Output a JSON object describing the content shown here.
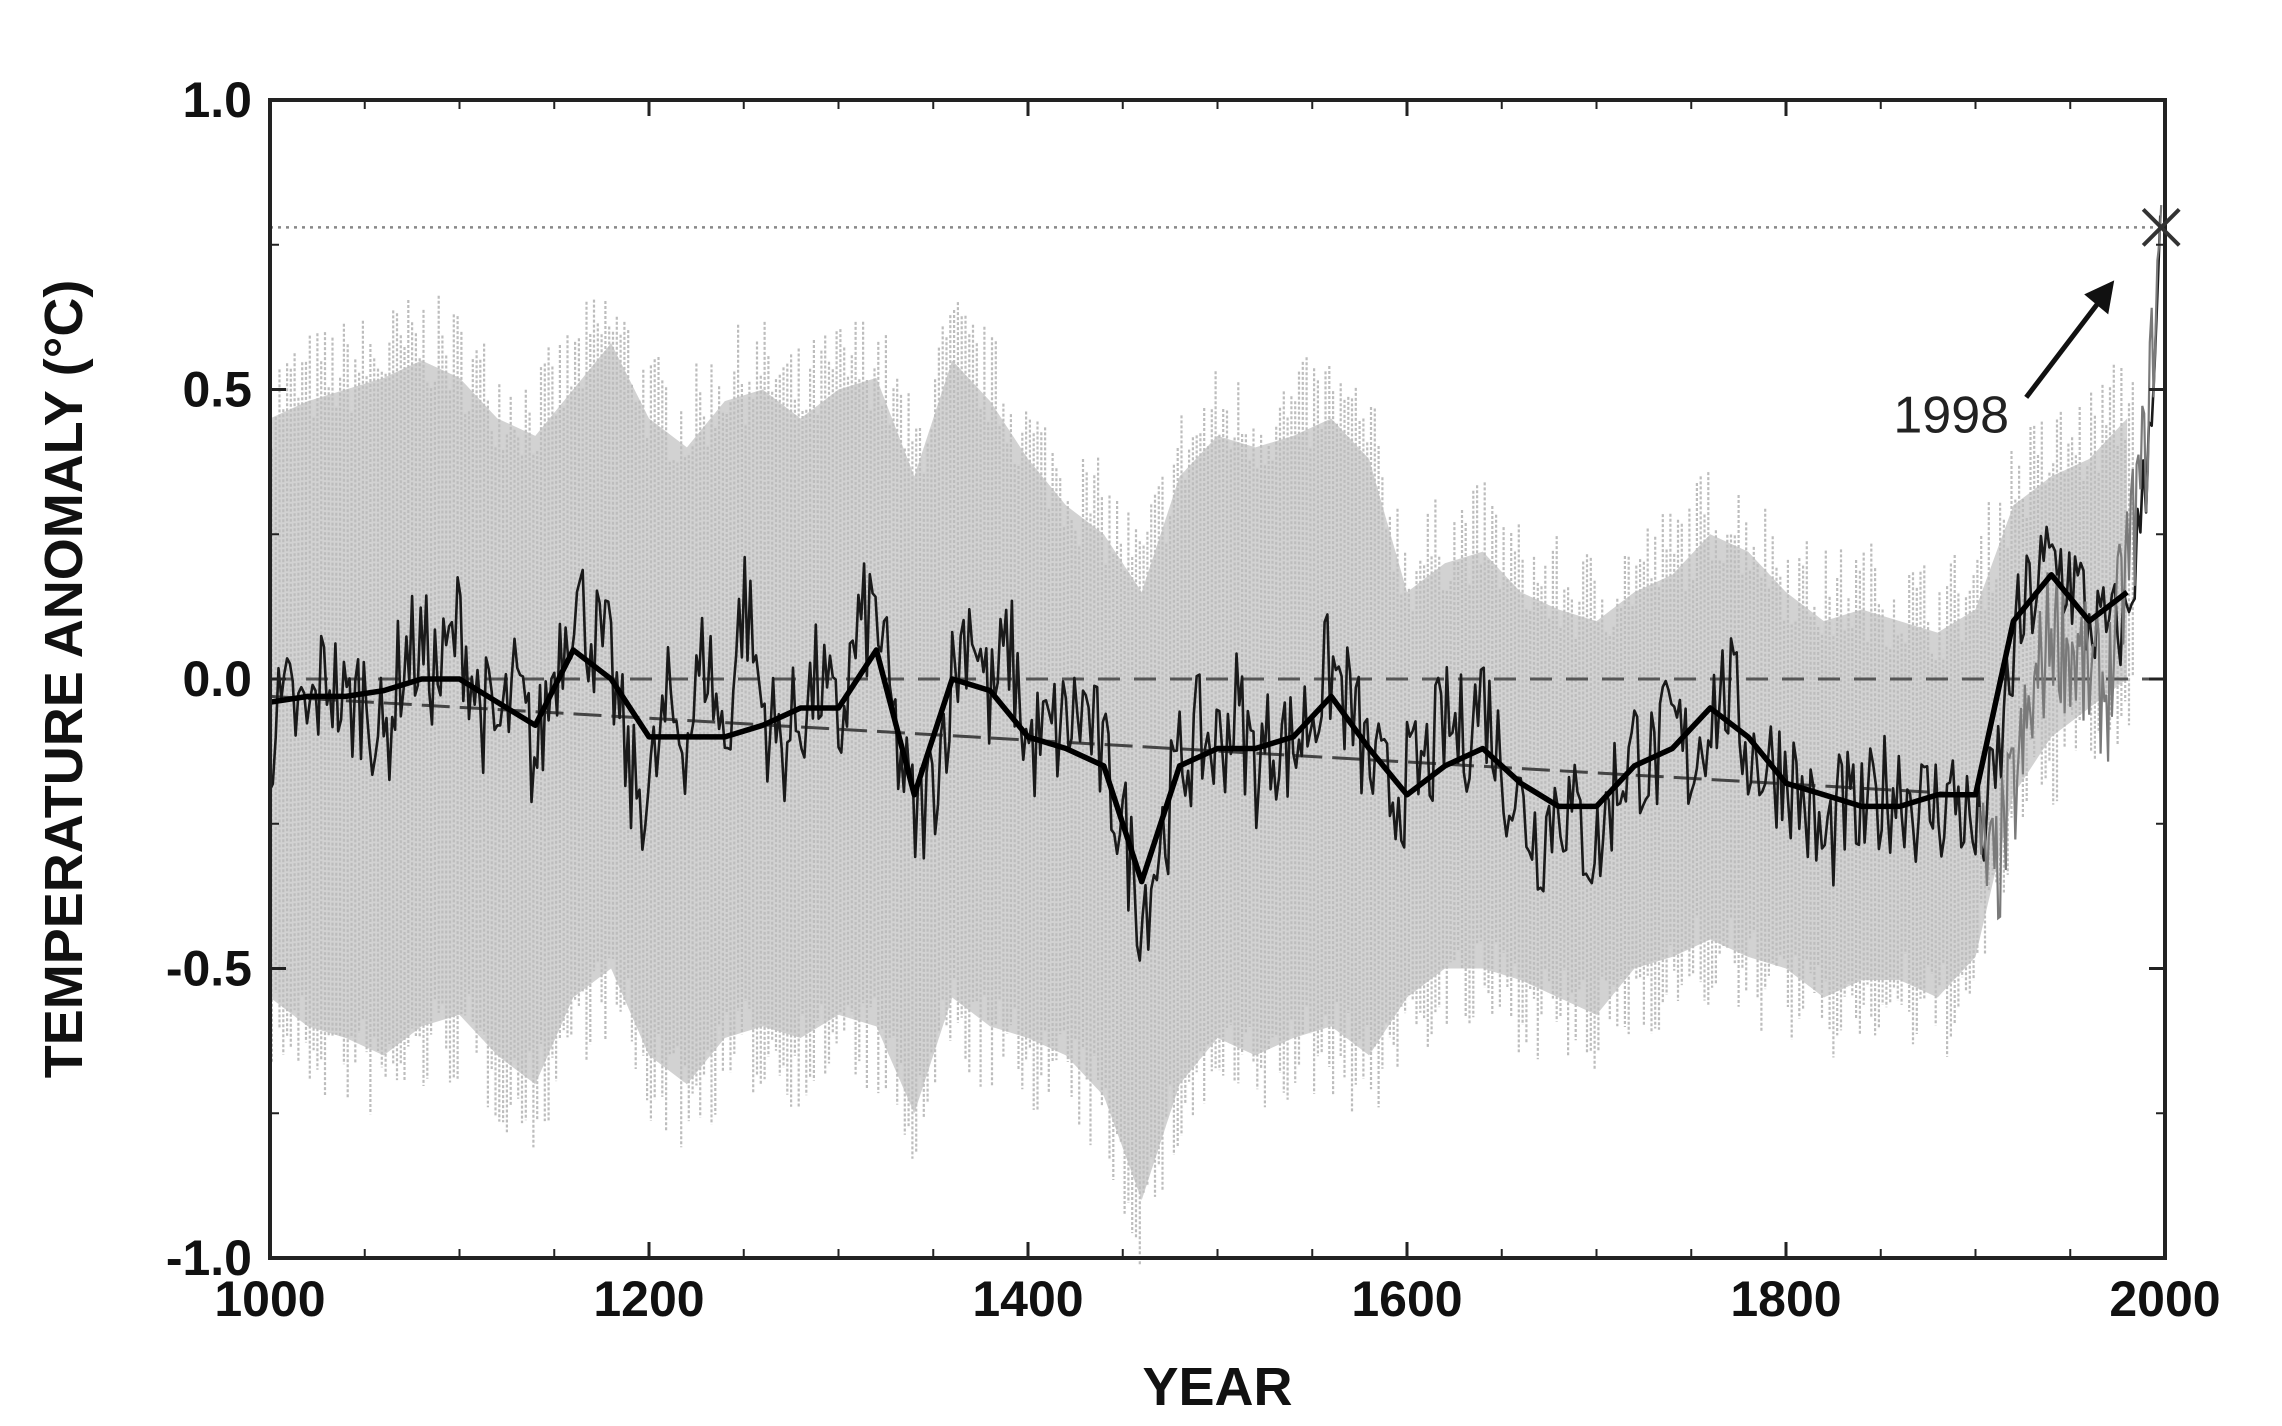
{
  "chart_data": {
    "type": "line",
    "title": "",
    "xlabel": "YEAR",
    "ylabel": "TEMPERATURE ANOMALY (°C)",
    "xlim": [
      1000,
      2000
    ],
    "ylim": [
      -1.0,
      1.0
    ],
    "xticks": [
      1000,
      1200,
      1400,
      1600,
      1800,
      2000
    ],
    "xtick_labels": [
      "1000",
      "1200",
      "1400",
      "1600",
      "1800",
      "2000"
    ],
    "yticks": [
      1.0,
      0.5,
      0.0,
      -0.5,
      -1.0
    ],
    "ytick_labels": [
      "1.0",
      "0.5",
      "0.0",
      "-0.5",
      "-1.0"
    ],
    "grid": false,
    "reference_lines": [
      {
        "style": "dashed",
        "y": 0.0
      },
      {
        "style": "dotted",
        "y": 0.78
      }
    ],
    "series": [
      {
        "style": "uncertainty-band",
        "x": [
          1000,
          1020,
          1040,
          1060,
          1080,
          1100,
          1120,
          1140,
          1160,
          1180,
          1200,
          1220,
          1240,
          1260,
          1280,
          1300,
          1320,
          1340,
          1360,
          1380,
          1400,
          1420,
          1440,
          1460,
          1480,
          1500,
          1520,
          1540,
          1560,
          1580,
          1600,
          1620,
          1640,
          1660,
          1680,
          1700,
          1720,
          1740,
          1760,
          1780,
          1800,
          1820,
          1840,
          1860,
          1880,
          1900,
          1920,
          1940,
          1960,
          1980
        ],
        "upper": [
          0.45,
          0.48,
          0.5,
          0.52,
          0.55,
          0.52,
          0.45,
          0.42,
          0.5,
          0.58,
          0.45,
          0.4,
          0.48,
          0.5,
          0.45,
          0.5,
          0.52,
          0.35,
          0.55,
          0.48,
          0.38,
          0.3,
          0.25,
          0.15,
          0.35,
          0.42,
          0.4,
          0.42,
          0.45,
          0.38,
          0.15,
          0.2,
          0.22,
          0.15,
          0.12,
          0.1,
          0.15,
          0.18,
          0.25,
          0.22,
          0.15,
          0.1,
          0.12,
          0.1,
          0.08,
          0.12,
          0.3,
          0.35,
          0.38,
          0.45
        ],
        "lower": [
          -0.55,
          -0.6,
          -0.62,
          -0.65,
          -0.6,
          -0.58,
          -0.65,
          -0.7,
          -0.55,
          -0.5,
          -0.65,
          -0.7,
          -0.62,
          -0.6,
          -0.62,
          -0.58,
          -0.6,
          -0.75,
          -0.55,
          -0.6,
          -0.62,
          -0.65,
          -0.72,
          -0.9,
          -0.7,
          -0.62,
          -0.65,
          -0.62,
          -0.6,
          -0.65,
          -0.55,
          -0.5,
          -0.5,
          -0.52,
          -0.55,
          -0.58,
          -0.5,
          -0.48,
          -0.45,
          -0.48,
          -0.5,
          -0.55,
          -0.52,
          -0.52,
          -0.55,
          -0.48,
          -0.2,
          -0.1,
          -0.05,
          0.0
        ]
      },
      {
        "style": "reconstruction",
        "x": [
          1000,
          1010,
          1020,
          1030,
          1040,
          1050,
          1060,
          1070,
          1080,
          1090,
          1100,
          1110,
          1120,
          1130,
          1140,
          1150,
          1160,
          1170,
          1180,
          1190,
          1200,
          1210,
          1220,
          1230,
          1240,
          1250,
          1260,
          1270,
          1280,
          1290,
          1300,
          1310,
          1320,
          1330,
          1340,
          1350,
          1360,
          1370,
          1380,
          1390,
          1400,
          1410,
          1420,
          1430,
          1440,
          1450,
          1460,
          1470,
          1480,
          1490,
          1500,
          1510,
          1520,
          1530,
          1540,
          1550,
          1560,
          1570,
          1580,
          1590,
          1600,
          1610,
          1620,
          1630,
          1640,
          1650,
          1660,
          1670,
          1680,
          1690,
          1700,
          1710,
          1720,
          1730,
          1740,
          1750,
          1760,
          1770,
          1780,
          1790,
          1800,
          1810,
          1820,
          1830,
          1840,
          1850,
          1860,
          1870,
          1880,
          1890,
          1900,
          1910,
          1920,
          1930,
          1940,
          1950,
          1960,
          1970,
          1980,
          1990,
          1998
        ],
        "y": [
          -0.1,
          -0.05,
          -0.08,
          0.02,
          -0.06,
          -0.02,
          -0.12,
          0.04,
          0.05,
          0.0,
          0.1,
          -0.04,
          -0.1,
          -0.02,
          -0.15,
          0.02,
          0.15,
          0.08,
          0.02,
          -0.18,
          -0.2,
          -0.05,
          -0.1,
          0.05,
          -0.12,
          0.15,
          -0.05,
          -0.12,
          -0.06,
          0.0,
          -0.1,
          0.08,
          0.12,
          -0.1,
          -0.25,
          -0.18,
          0.0,
          0.12,
          -0.05,
          0.06,
          -0.12,
          -0.1,
          -0.08,
          -0.05,
          -0.15,
          -0.25,
          -0.4,
          -0.28,
          -0.15,
          -0.1,
          -0.12,
          -0.05,
          -0.15,
          -0.1,
          -0.12,
          -0.05,
          0.02,
          -0.05,
          -0.15,
          -0.2,
          -0.18,
          -0.15,
          -0.08,
          -0.1,
          -0.02,
          -0.15,
          -0.22,
          -0.28,
          -0.2,
          -0.25,
          -0.3,
          -0.18,
          -0.12,
          -0.15,
          -0.08,
          -0.15,
          -0.05,
          -0.02,
          -0.12,
          -0.15,
          -0.15,
          -0.22,
          -0.3,
          -0.22,
          -0.25,
          -0.2,
          -0.18,
          -0.22,
          -0.22,
          -0.2,
          -0.28,
          -0.2,
          0.05,
          0.15,
          0.2,
          0.18,
          0.1,
          0.08,
          0.1,
          0.35,
          0.78
        ]
      },
      {
        "style": "smoothed",
        "x": [
          1000,
          1020,
          1040,
          1060,
          1080,
          1100,
          1120,
          1140,
          1160,
          1180,
          1200,
          1220,
          1240,
          1260,
          1280,
          1300,
          1320,
          1340,
          1360,
          1380,
          1400,
          1420,
          1440,
          1460,
          1480,
          1500,
          1520,
          1540,
          1560,
          1580,
          1600,
          1620,
          1640,
          1660,
          1680,
          1700,
          1720,
          1740,
          1760,
          1780,
          1800,
          1820,
          1840,
          1860,
          1880,
          1900,
          1920,
          1940,
          1960,
          1980
        ],
        "y": [
          -0.04,
          -0.03,
          -0.03,
          -0.02,
          0.0,
          0.0,
          -0.04,
          -0.08,
          0.05,
          0.0,
          -0.1,
          -0.1,
          -0.1,
          -0.08,
          -0.05,
          -0.05,
          0.05,
          -0.2,
          0.0,
          -0.02,
          -0.1,
          -0.12,
          -0.15,
          -0.35,
          -0.15,
          -0.12,
          -0.12,
          -0.1,
          -0.03,
          -0.12,
          -0.2,
          -0.15,
          -0.12,
          -0.18,
          -0.22,
          -0.22,
          -0.15,
          -0.12,
          -0.05,
          -0.1,
          -0.18,
          -0.2,
          -0.22,
          -0.22,
          -0.2,
          -0.2,
          0.1,
          0.18,
          0.1,
          0.15
        ]
      },
      {
        "style": "linear-trend",
        "x": [
          1000,
          1900
        ],
        "y": [
          -0.03,
          -0.2
        ]
      },
      {
        "style": "instrumental",
        "x": [
          1902,
          1910,
          1920,
          1930,
          1940,
          1950,
          1960,
          1970,
          1980,
          1990,
          1998
        ],
        "y": [
          -0.3,
          -0.35,
          -0.2,
          -0.05,
          0.1,
          0.05,
          0.0,
          -0.02,
          0.2,
          0.4,
          0.78
        ]
      }
    ],
    "annotations": [
      {
        "text": "1998",
        "target_x": 1998,
        "target_y": 0.78
      }
    ]
  }
}
